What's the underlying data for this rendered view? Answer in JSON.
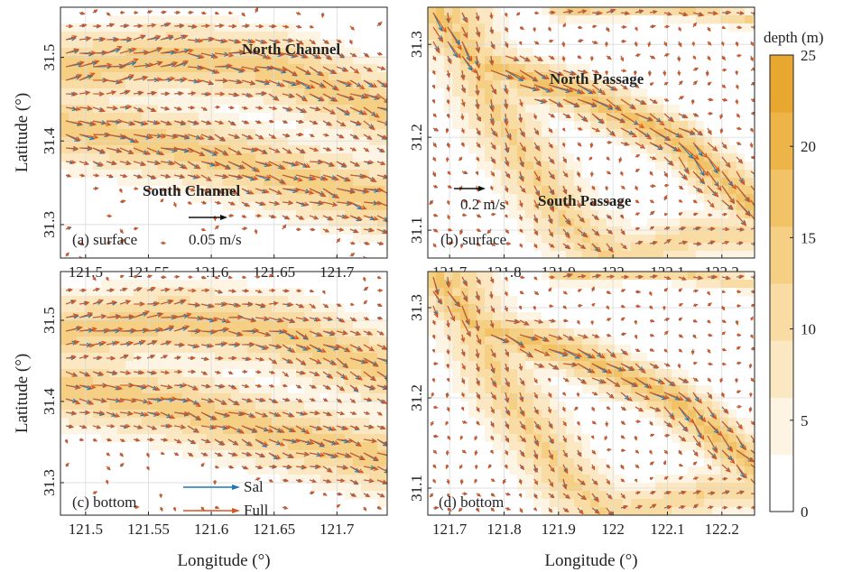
{
  "chart_data": {
    "type": "vector-field-contour",
    "x_axis_label": "Longitude (°)",
    "y_axis_label": "Latitude (°)",
    "colorbar": {
      "label": "depth (m)",
      "range": [
        0,
        25
      ],
      "ticks": [
        "0",
        "5",
        "10",
        "15",
        "20",
        "25"
      ],
      "colors": [
        "#ffffff",
        "#fdf4e3",
        "#fbe8c3",
        "#f8dca3",
        "#f5cf84",
        "#f1c266",
        "#edb548",
        "#e8a82f"
      ]
    },
    "colors": {
      "sal": "#1f77b4",
      "full": "#d8551f"
    },
    "legend": {
      "items": [
        {
          "label": "Sal",
          "color": "#1f77b4"
        },
        {
          "label": "Full",
          "color": "#d8551f"
        }
      ]
    },
    "panels": [
      {
        "id": "a",
        "label": "(a) surface",
        "xlim": [
          121.48,
          121.74
        ],
        "ylim": [
          31.26,
          31.56
        ],
        "xticks": [
          "121.5",
          "121.55",
          "121.6",
          "121.65",
          "121.7"
        ],
        "yticks": [
          "31.3",
          "31.4",
          "31.5"
        ],
        "scale": {
          "label": "0.05 m/s",
          "value": 0.05
        },
        "annotations": [
          {
            "text": "North Channel",
            "x": 121.65,
            "y": 31.513
          },
          {
            "text": "South Channel",
            "x": 121.59,
            "y": 31.34
          }
        ]
      },
      {
        "id": "b",
        "label": "(b) surface",
        "xlim": [
          121.66,
          122.26
        ],
        "ylim": [
          31.07,
          31.34
        ],
        "xticks": [
          "121.7",
          "121.8",
          "121.9",
          "122",
          "122.1",
          "122.2"
        ],
        "yticks": [
          "31.1",
          "31.2",
          "31.3"
        ],
        "scale": {
          "label": "0.2 m/s",
          "value": 0.2
        },
        "annotations": [
          {
            "text": "North Passage",
            "x": 121.97,
            "y": 31.265
          },
          {
            "text": "South Passage",
            "x": 121.96,
            "y": 31.135
          }
        ]
      },
      {
        "id": "c",
        "label": "(c) bottom",
        "xlim": [
          121.48,
          121.74
        ],
        "ylim": [
          31.26,
          31.56
        ],
        "xticks": [
          "121.5",
          "121.55",
          "121.6",
          "121.65",
          "121.7"
        ],
        "yticks": [
          "31.3",
          "31.4",
          "31.5"
        ],
        "show_legend": true
      },
      {
        "id": "d",
        "label": "(d) bottom",
        "xlim": [
          121.66,
          122.26
        ],
        "ylim": [
          31.07,
          31.34
        ],
        "xticks": [
          "121.7",
          "121.8",
          "121.9",
          "122",
          "122.1",
          "122.2"
        ],
        "yticks": [
          "31.1",
          "31.2",
          "31.3"
        ]
      }
    ]
  }
}
